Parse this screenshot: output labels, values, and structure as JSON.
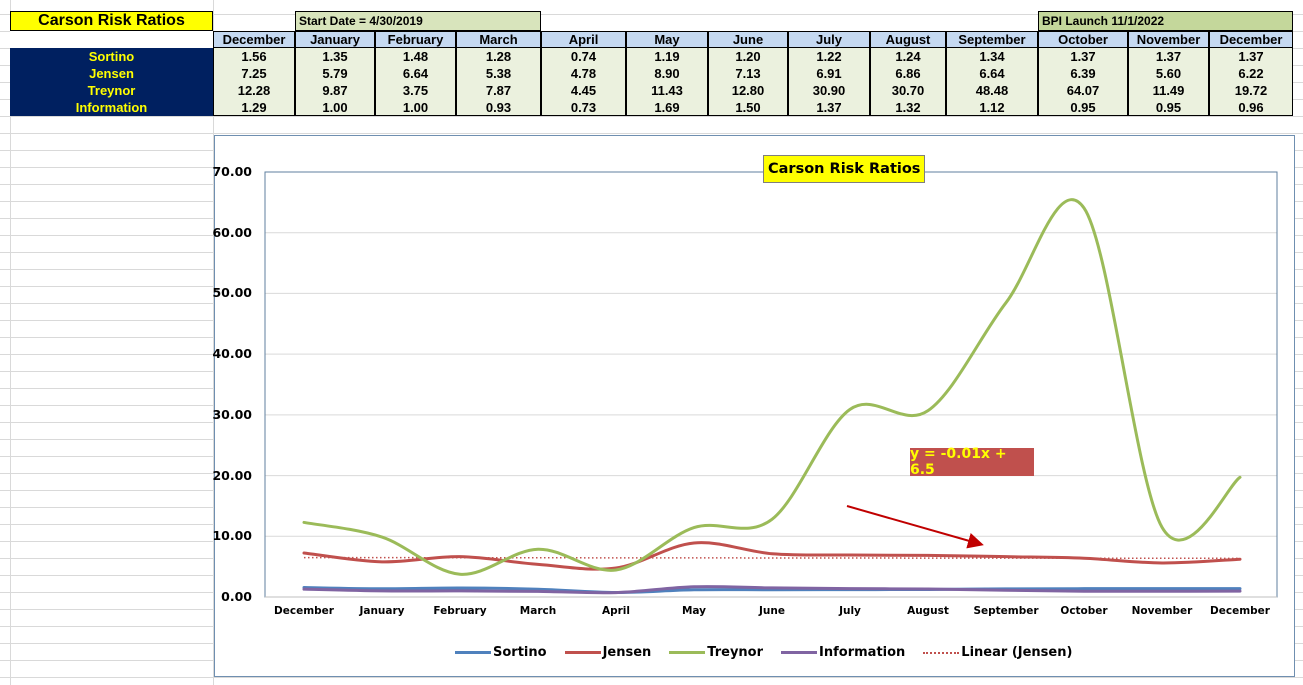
{
  "sheet": {
    "title": "Carson Risk Ratios",
    "start_date_note": "Start Date = 4/30/2019",
    "launch_note": "BPI Launch 11/1/2022",
    "months": [
      "December",
      "January",
      "February",
      "March",
      "April",
      "May",
      "June",
      "July",
      "August",
      "September",
      "October",
      "November",
      "December"
    ],
    "rows": [
      {
        "label": "Sortino",
        "values": [
          "1.56",
          "1.35",
          "1.48",
          "1.28",
          "0.74",
          "1.19",
          "1.20",
          "1.22",
          "1.24",
          "1.34",
          "1.37",
          "1.37",
          "1.37"
        ]
      },
      {
        "label": "Jensen",
        "values": [
          "7.25",
          "5.79",
          "6.64",
          "5.38",
          "4.78",
          "8.90",
          "7.13",
          "6.91",
          "6.86",
          "6.64",
          "6.39",
          "5.60",
          "6.22"
        ]
      },
      {
        "label": "Treynor",
        "values": [
          "12.28",
          "9.87",
          "3.75",
          "7.87",
          "4.45",
          "11.43",
          "12.80",
          "30.90",
          "30.70",
          "48.48",
          "64.07",
          "11.49",
          "19.72"
        ]
      },
      {
        "label": "Information",
        "values": [
          "1.29",
          "1.00",
          "1.00",
          "0.93",
          "0.73",
          "1.69",
          "1.50",
          "1.37",
          "1.32",
          "1.12",
          "0.95",
          "0.95",
          "0.96"
        ]
      }
    ]
  },
  "chart_data": {
    "type": "line",
    "title": "Carson Risk Ratios",
    "xlabel": "",
    "ylabel": "",
    "ylim": [
      0,
      70
    ],
    "yticks": [
      "0.00",
      "10.00",
      "20.00",
      "30.00",
      "40.00",
      "50.00",
      "60.00",
      "70.00"
    ],
    "grid": true,
    "legend_position": "bottom",
    "categories": [
      "December",
      "January",
      "February",
      "March",
      "April",
      "May",
      "June",
      "July",
      "August",
      "September",
      "October",
      "November",
      "December"
    ],
    "series": [
      {
        "name": "Sortino",
        "color": "#4f81bd",
        "values": [
          1.56,
          1.35,
          1.48,
          1.28,
          0.74,
          1.19,
          1.2,
          1.22,
          1.24,
          1.34,
          1.37,
          1.37,
          1.37
        ]
      },
      {
        "name": "Jensen",
        "color": "#c0504d",
        "values": [
          7.25,
          5.79,
          6.64,
          5.38,
          4.78,
          8.9,
          7.13,
          6.91,
          6.86,
          6.64,
          6.39,
          5.6,
          6.22
        ]
      },
      {
        "name": "Treynor",
        "color": "#9bbb59",
        "values": [
          12.28,
          9.87,
          3.75,
          7.87,
          4.45,
          11.43,
          12.8,
          30.9,
          30.7,
          48.48,
          64.07,
          11.49,
          19.72
        ]
      },
      {
        "name": "Information",
        "color": "#8064a2",
        "values": [
          1.29,
          1.0,
          1.0,
          0.93,
          0.73,
          1.69,
          1.5,
          1.37,
          1.32,
          1.12,
          0.95,
          0.95,
          0.96
        ]
      }
    ],
    "trendline": {
      "name": "Linear (Jensen)",
      "color": "#c0504d",
      "style": "dotted",
      "slope": -0.01,
      "intercept": 6.5
    },
    "annotations": [
      {
        "text": "y = -0.01x + 6.5",
        "background": "#c0504d",
        "color": "#ffff00",
        "arrow": true
      }
    ],
    "legend": [
      "Sortino",
      "Jensen",
      "Treynor",
      "Information",
      "Linear (Jensen)"
    ]
  }
}
